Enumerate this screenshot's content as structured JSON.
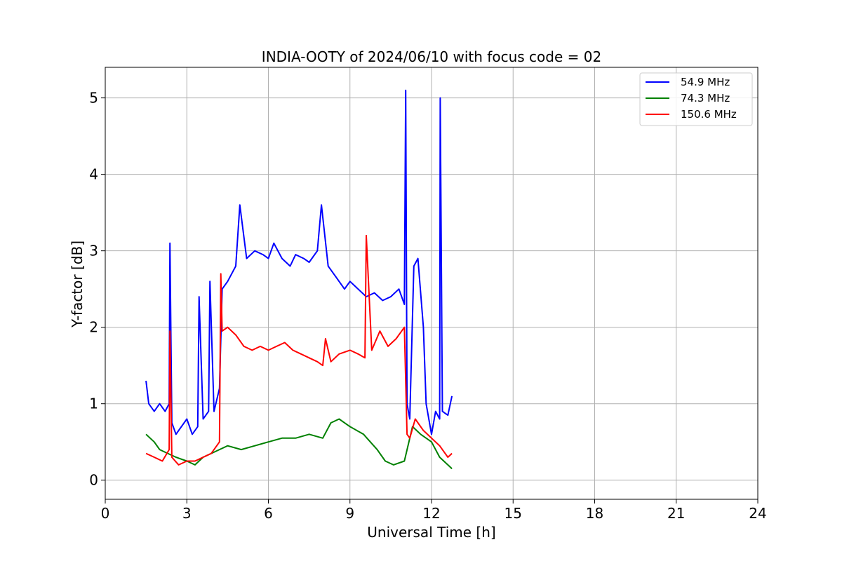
{
  "chart_data": {
    "type": "line",
    "title": "INDIA-OOTY of 2024/06/10 with focus code = 02",
    "xlabel": "Universal Time [h]",
    "ylabel": "Y-factor [dB]",
    "xlim": [
      0,
      24
    ],
    "ylim": [
      -0.25,
      5.4
    ],
    "xticks": [
      0,
      3,
      6,
      9,
      12,
      15,
      18,
      21,
      24
    ],
    "yticks": [
      0,
      1,
      2,
      3,
      4,
      5
    ],
    "grid": true,
    "legend_position": "top-right",
    "series": [
      {
        "name": "  54.9 MHz",
        "color": "#0000ff",
        "x": [
          1.5,
          1.6,
          1.8,
          2.0,
          2.2,
          2.35,
          2.38,
          2.45,
          2.6,
          2.8,
          3.0,
          3.2,
          3.4,
          3.45,
          3.6,
          3.8,
          3.85,
          4.0,
          4.2,
          4.3,
          4.5,
          4.8,
          4.95,
          5.2,
          5.5,
          5.8,
          6.0,
          6.2,
          6.5,
          6.8,
          7.0,
          7.3,
          7.5,
          7.8,
          7.95,
          8.2,
          8.5,
          8.8,
          9.0,
          9.3,
          9.6,
          9.9,
          10.2,
          10.5,
          10.8,
          11.0,
          11.05,
          11.1,
          11.2,
          11.35,
          11.5,
          11.7,
          11.8,
          12.0,
          12.15,
          12.3,
          12.32,
          12.4,
          12.6,
          12.75
        ],
        "y": [
          1.3,
          1.0,
          0.9,
          1.0,
          0.9,
          1.0,
          3.1,
          0.75,
          0.6,
          0.7,
          0.8,
          0.6,
          0.7,
          2.4,
          0.8,
          0.9,
          2.6,
          0.9,
          1.2,
          2.5,
          2.6,
          2.8,
          3.6,
          2.9,
          3.0,
          2.95,
          2.9,
          3.1,
          2.9,
          2.8,
          2.95,
          2.9,
          2.85,
          3.0,
          3.6,
          2.8,
          2.65,
          2.5,
          2.6,
          2.5,
          2.4,
          2.45,
          2.35,
          2.4,
          2.5,
          2.3,
          5.1,
          1.0,
          0.8,
          2.8,
          2.9,
          2.0,
          1.0,
          0.6,
          0.9,
          0.8,
          5.0,
          0.9,
          0.85,
          1.1
        ]
      },
      {
        "name": "  74.3 MHz",
        "color": "#008000",
        "x": [
          1.5,
          1.8,
          2.0,
          2.3,
          2.6,
          3.0,
          3.3,
          3.6,
          3.9,
          4.2,
          4.5,
          5.0,
          5.5,
          6.0,
          6.5,
          7.0,
          7.5,
          8.0,
          8.3,
          8.6,
          9.0,
          9.5,
          10.0,
          10.3,
          10.6,
          11.0,
          11.3,
          11.6,
          12.0,
          12.3,
          12.6,
          12.75
        ],
        "y": [
          0.6,
          0.5,
          0.4,
          0.35,
          0.3,
          0.25,
          0.2,
          0.3,
          0.35,
          0.4,
          0.45,
          0.4,
          0.45,
          0.5,
          0.55,
          0.55,
          0.6,
          0.55,
          0.75,
          0.8,
          0.7,
          0.6,
          0.4,
          0.25,
          0.2,
          0.25,
          0.7,
          0.6,
          0.5,
          0.3,
          0.2,
          0.15
        ]
      },
      {
        "name": "150.6 MHz",
        "color": "#ff0000",
        "x": [
          1.5,
          1.8,
          2.1,
          2.35,
          2.38,
          2.45,
          2.7,
          3.0,
          3.3,
          3.6,
          3.9,
          4.2,
          4.25,
          4.3,
          4.5,
          4.8,
          5.1,
          5.4,
          5.7,
          6.0,
          6.3,
          6.6,
          6.9,
          7.2,
          7.5,
          7.8,
          8.0,
          8.1,
          8.3,
          8.6,
          9.0,
          9.3,
          9.55,
          9.6,
          9.8,
          10.1,
          10.4,
          10.7,
          11.0,
          11.1,
          11.2,
          11.4,
          11.7,
          12.0,
          12.3,
          12.6,
          12.75
        ],
        "y": [
          0.35,
          0.3,
          0.25,
          0.4,
          1.95,
          0.3,
          0.2,
          0.25,
          0.25,
          0.3,
          0.35,
          0.5,
          2.7,
          1.95,
          2.0,
          1.9,
          1.75,
          1.7,
          1.75,
          1.7,
          1.75,
          1.8,
          1.7,
          1.65,
          1.6,
          1.55,
          1.5,
          1.85,
          1.55,
          1.65,
          1.7,
          1.65,
          1.6,
          3.2,
          1.7,
          1.95,
          1.75,
          1.85,
          2.0,
          0.6,
          0.55,
          0.8,
          0.65,
          0.55,
          0.45,
          0.3,
          0.35
        ]
      }
    ]
  }
}
